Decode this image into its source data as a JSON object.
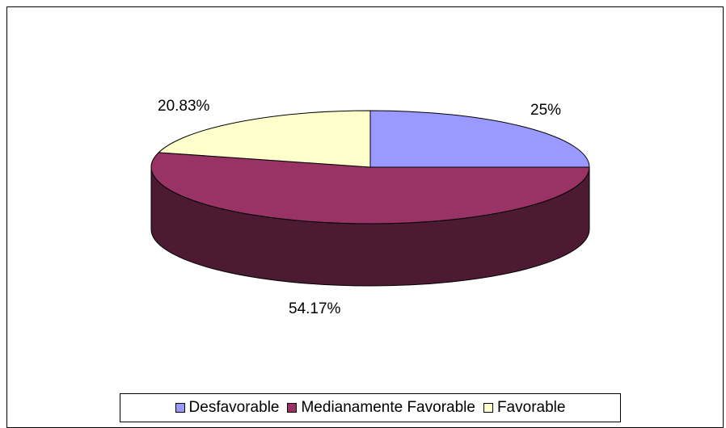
{
  "chart_data": {
    "type": "pie",
    "variant": "3d",
    "title": "",
    "series": [
      {
        "name": "Desfavorable",
        "value": 25,
        "label": "25%",
        "color": "#9999ff",
        "side_color": "#5b5bae"
      },
      {
        "name": "Medianamente Favorable",
        "value": 54.17,
        "label": "54.17%",
        "color": "#993366",
        "side_color": "#4d1a33"
      },
      {
        "name": "Favorable",
        "value": 20.83,
        "label": "20.83%",
        "color": "#ffffcc",
        "side_color": "#b3b38f"
      }
    ],
    "legend_position": "bottom"
  }
}
